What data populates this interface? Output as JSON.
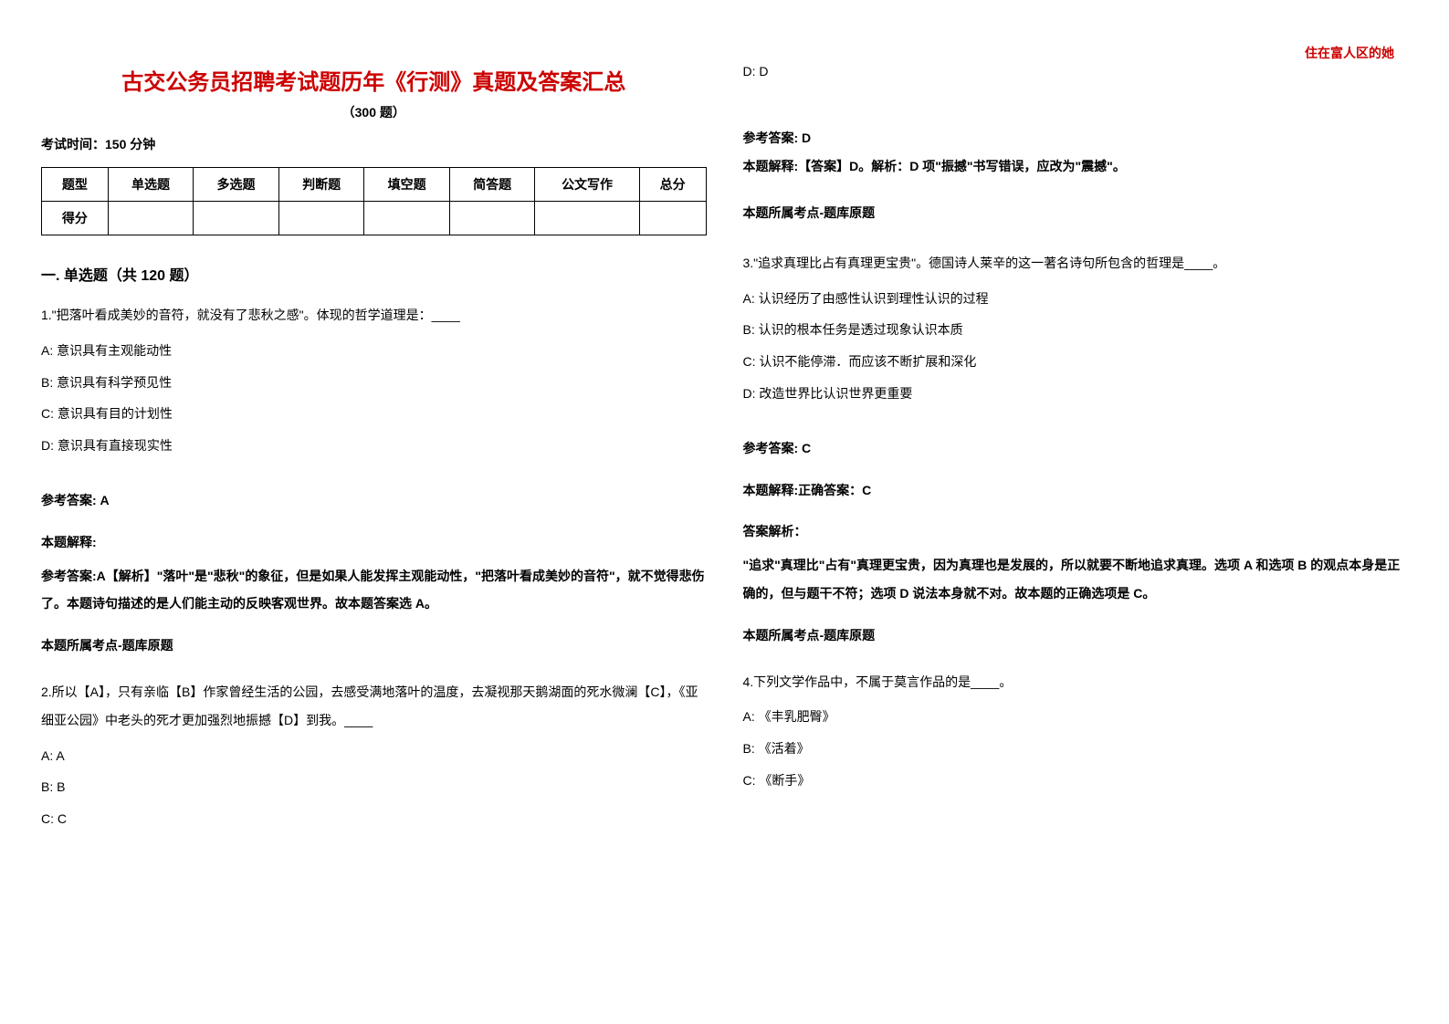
{
  "header": {
    "right_text": "住在富人区的她"
  },
  "title": "古交公务员招聘考试题历年《行测》真题及答案汇总",
  "subtitle": "（300 题）",
  "exam_time": "考试时间：150 分钟",
  "score_table": {
    "headers": [
      "题型",
      "单选题",
      "多选题",
      "判断题",
      "填空题",
      "简答题",
      "公文写作",
      "总分"
    ],
    "row_label": "得分"
  },
  "section_title": "一. 单选题（共 120 题）",
  "q1": {
    "text": "1.\"把落叶看成美妙的音符，就没有了悲秋之感\"。体现的哲学道理是：____",
    "options": {
      "A": "A:  意识具有主观能动性",
      "B": "B:  意识具有科学预见性",
      "C": "C:  意识具有目的计划性",
      "D": "D:  意识具有直接现实性"
    },
    "answer_label": "参考答案: A",
    "explain_label": "本题解释:",
    "explain_text": "参考答案:A【解析】\"落叶\"是\"悲秋\"的象征，但是如果人能发挥主观能动性，\"把落叶看成美妙的音符\"，就不觉得悲伤了。本题诗句描述的是人们能主动的反映客观世界。故本题答案选 A。",
    "topic_label": "本题所属考点-题库原题"
  },
  "q2": {
    "text": "2.所以【A】，只有亲临【B】作家曾经生活的公园，去感受满地落叶的温度，去凝视那天鹅湖面的死水微澜【C】，《亚细亚公园》中老头的死才更加强烈地振撼【D】到我。____",
    "options": {
      "A": "A: A",
      "B": "B: B",
      "C": "C: C"
    }
  },
  "right_top": {
    "option_d": "D: D",
    "answer_label": "参考答案: D",
    "explain_text": "本题解释:【答案】D。解析：D 项\"振撼\"书写错误，应改为\"震撼\"。",
    "topic_label": "本题所属考点-题库原题"
  },
  "q3": {
    "text": "3.\"追求真理比占有真理更宝贵\"。德国诗人莱辛的这一著名诗句所包含的哲理是____。",
    "options": {
      "A": "A:  认识经历了由感性认识到理性认识的过程",
      "B": "B:  认识的根本任务是透过现象认识本质",
      "C": "C:  认识不能停滞．而应该不断扩展和深化",
      "D": "D:  改造世界比认识世界更重要"
    },
    "answer_label": "参考答案: C",
    "explain_label": "本题解释:正确答案：C",
    "analysis_label": "答案解析：",
    "explain_text": "\"追求\"真理比\"占有\"真理更宝贵，因为真理也是发展的，所以就要不断地追求真理。选项 A 和选项 B 的观点本身是正确的，但与题干不符；选项 D 说法本身就不对。故本题的正确选项是 C。",
    "topic_label": "本题所属考点-题库原题"
  },
  "q4": {
    "text": "4.下列文学作品中，不属于莫言作品的是____。",
    "options": {
      "A": "A:  《丰乳肥臀》",
      "B": "B:  《活着》",
      "C": "C:  《断手》"
    }
  }
}
